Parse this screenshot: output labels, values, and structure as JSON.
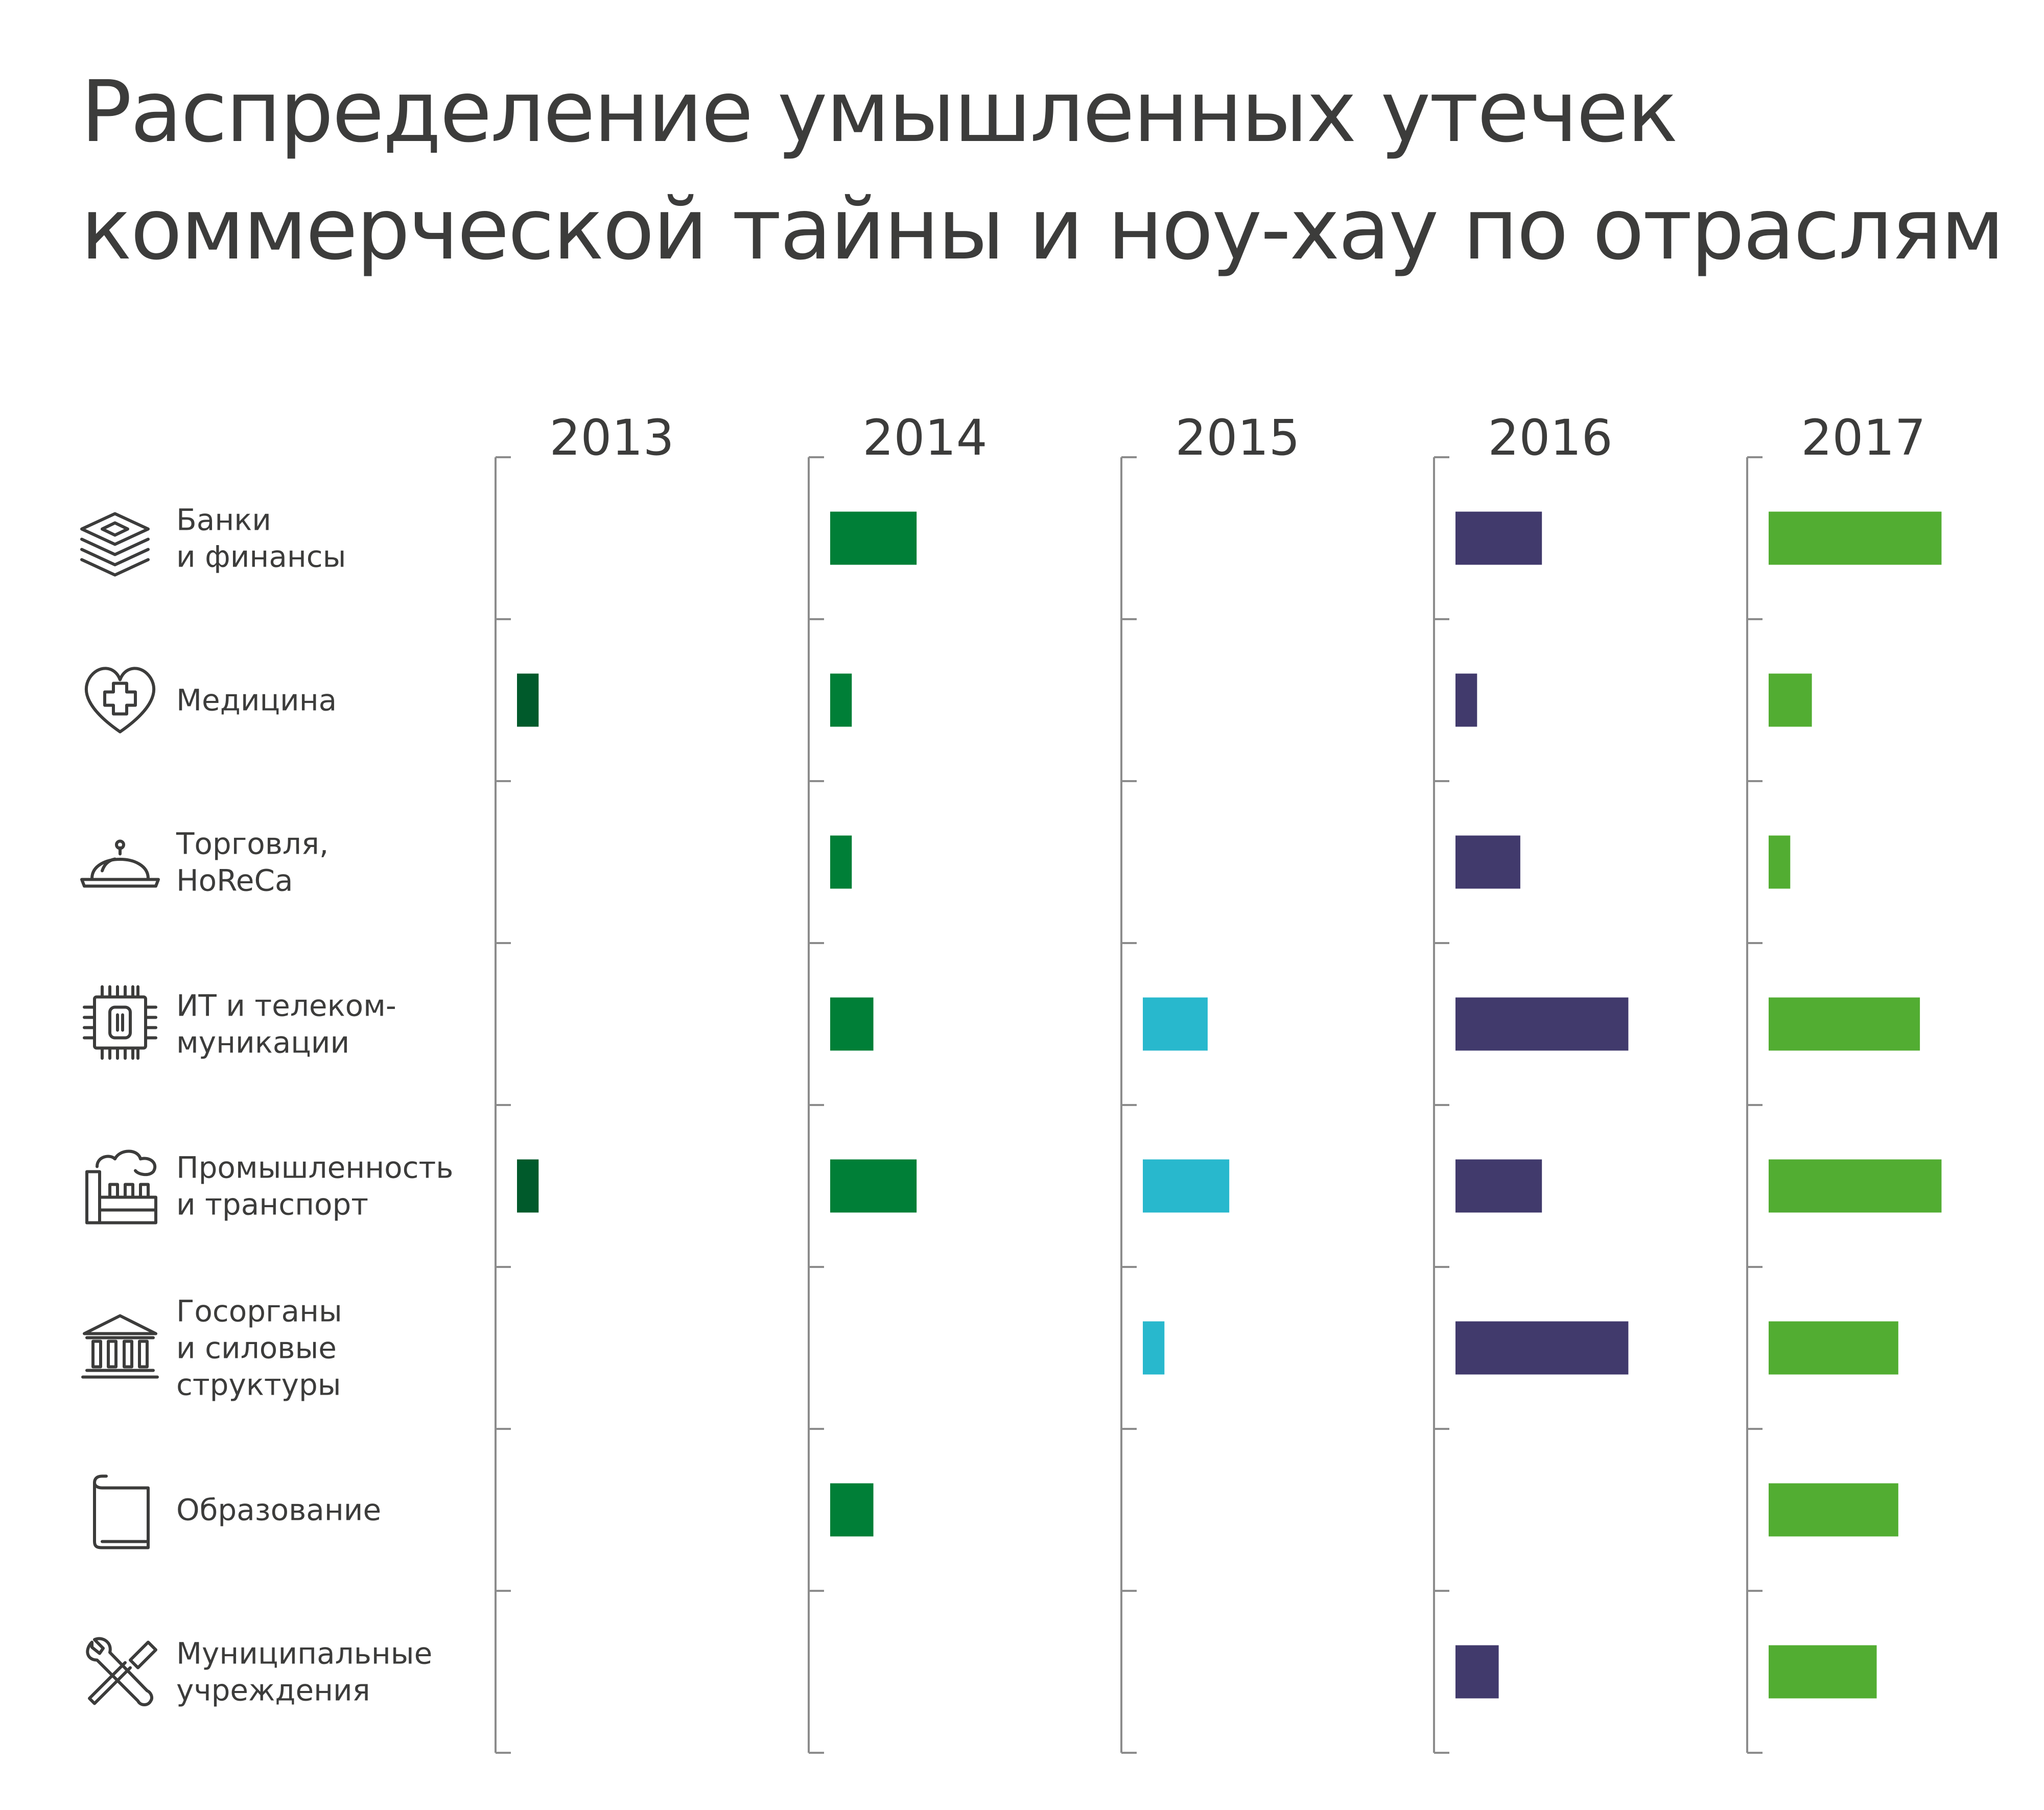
{
  "chart_data": {
    "type": "bar",
    "title_lines": [
      "Распределение умышленных утечек",
      "коммерческой тайны и ноу-хау по отраслям"
    ],
    "panels": [
      "2013",
      "2014",
      "2015",
      "2016",
      "2017"
    ],
    "categories": [
      {
        "lines": [
          "Банки",
          "и финансы"
        ],
        "icon": "stacked-banknotes-icon"
      },
      {
        "lines": [
          "Медицина"
        ],
        "icon": "heart-medical-cross-icon"
      },
      {
        "lines": [
          "Торговля,",
          "HoReCa"
        ],
        "icon": "serving-cloche-icon"
      },
      {
        "lines": [
          "ИТ и телеком-",
          "муникации"
        ],
        "icon": "microchip-icon"
      },
      {
        "lines": [
          "Промышленность",
          "и транспорт"
        ],
        "icon": "factory-icon"
      },
      {
        "lines": [
          "Госорганы",
          "и силовые",
          "структуры"
        ],
        "icon": "government-building-icon"
      },
      {
        "lines": [
          "Образование"
        ],
        "icon": "book-icon"
      },
      {
        "lines": [
          "Муниципальные",
          "учреждения"
        ],
        "icon": "wrench-screwdriver-icon"
      }
    ],
    "series": [
      {
        "name": "2013",
        "color": "#005a2b",
        "values": [
          0,
          1,
          0,
          0,
          1,
          0,
          0,
          0
        ]
      },
      {
        "name": "2014",
        "color": "#007f37",
        "values": [
          4,
          1,
          1,
          2,
          4,
          0,
          2,
          0
        ]
      },
      {
        "name": "2015",
        "color": "#28b8cd",
        "values": [
          0,
          0,
          0,
          3,
          4,
          1,
          0,
          0
        ]
      },
      {
        "name": "2016",
        "color": "#413a6c",
        "values": [
          4,
          1,
          3,
          8,
          4,
          8,
          0,
          2
        ]
      },
      {
        "name": "2017",
        "color": "#52ad32",
        "values": [
          8,
          2,
          1,
          7,
          8,
          6,
          6,
          5
        ]
      }
    ],
    "value_max": 8,
    "grid": false,
    "legend": "none"
  }
}
